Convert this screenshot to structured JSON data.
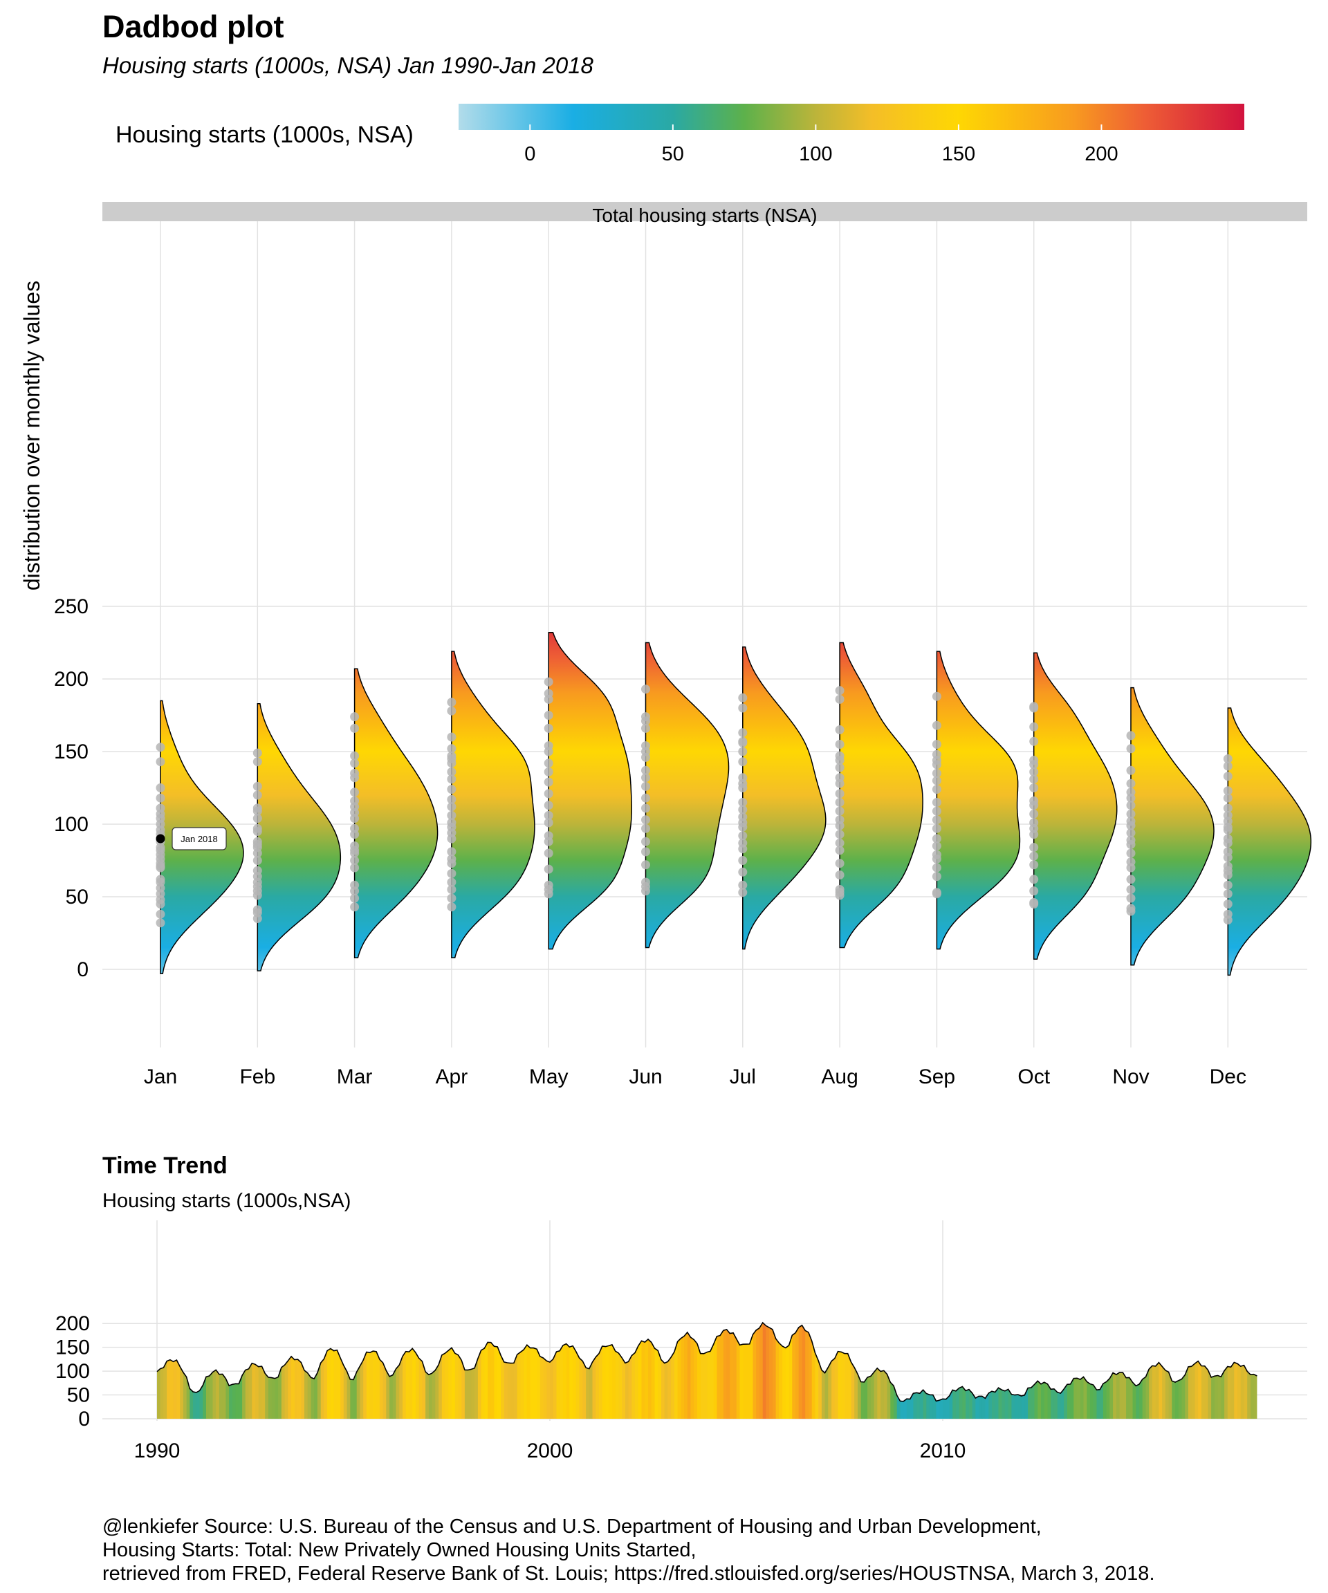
{
  "header": {
    "title": "Dadbod plot",
    "subtitle": "Housing starts (1000s, NSA) Jan 1990-Jan 2018"
  },
  "legend": {
    "title": "Housing starts (1000s, NSA)",
    "ticks": [
      0,
      50,
      100,
      150,
      200
    ],
    "range": [
      -25,
      250
    ],
    "color_stops": [
      {
        "v": -25,
        "c": "#b2dcea"
      },
      {
        "v": 15,
        "c": "#1aaee4"
      },
      {
        "v": 50,
        "c": "#2aa9a4"
      },
      {
        "v": 75,
        "c": "#5db14b"
      },
      {
        "v": 100,
        "c": "#bcb43a"
      },
      {
        "v": 120,
        "c": "#f4be27"
      },
      {
        "v": 150,
        "c": "#fed703"
      },
      {
        "v": 190,
        "c": "#f89b1f"
      },
      {
        "v": 215,
        "c": "#ee5e35"
      },
      {
        "v": 250,
        "c": "#d2133e"
      }
    ]
  },
  "chart_data": [
    {
      "type": "violin",
      "facet_label": "Total housing starts (NSA)",
      "ylabel": "distribution over monthly values",
      "ylim": [
        -30,
        255
      ],
      "yticks": [
        0,
        50,
        100,
        150,
        200,
        250
      ],
      "categories": [
        "Jan",
        "Feb",
        "Mar",
        "Apr",
        "May",
        "Jun",
        "Jul",
        "Aug",
        "Sep",
        "Oct",
        "Nov",
        "Dec"
      ],
      "density_range": [
        [
          -3,
          185
        ],
        [
          -1,
          183
        ],
        [
          8,
          207
        ],
        [
          8,
          219
        ],
        [
          14,
          232
        ],
        [
          15,
          225
        ],
        [
          14,
          222
        ],
        [
          15,
          225
        ],
        [
          14,
          219
        ],
        [
          7,
          218
        ],
        [
          3,
          194
        ],
        [
          -4,
          180
        ]
      ],
      "points": [
        [
          90,
          153,
          143,
          125,
          118,
          111,
          107,
          104,
          100,
          96,
          93,
          88,
          84,
          82,
          79,
          76,
          73,
          71,
          70,
          62,
          60,
          56,
          52,
          48,
          45,
          38,
          32
        ],
        [
          149,
          143,
          126,
          120,
          111,
          109,
          104,
          97,
          95,
          88,
          86,
          84,
          80,
          75,
          68,
          64,
          60,
          57,
          54,
          51,
          41,
          39,
          35
        ],
        [
          174,
          166,
          147,
          142,
          135,
          132,
          122,
          116,
          112,
          108,
          104,
          97,
          93,
          85,
          82,
          80,
          75,
          70,
          58,
          54,
          49,
          43
        ],
        [
          184,
          178,
          160,
          152,
          147,
          145,
          142,
          136,
          131,
          124,
          117,
          112,
          106,
          101,
          98,
          94,
          90,
          81,
          76,
          73,
          66,
          60,
          55,
          49,
          43
        ],
        [
          198,
          190,
          186,
          175,
          166,
          154,
          150,
          142,
          136,
          129,
          121,
          113,
          106,
          101,
          92,
          88,
          80,
          69,
          58,
          55,
          52
        ],
        [
          193,
          174,
          171,
          166,
          154,
          150,
          146,
          137,
          132,
          126,
          118,
          111,
          103,
          97,
          88,
          81,
          72,
          60,
          57,
          54
        ],
        [
          187,
          180,
          163,
          157,
          156,
          150,
          143,
          132,
          128,
          125,
          115,
          110,
          105,
          101,
          98,
          92,
          87,
          83,
          75,
          67,
          58,
          53
        ],
        [
          192,
          186,
          165,
          155,
          147,
          144,
          139,
          132,
          128,
          121,
          115,
          109,
          103,
          99,
          93,
          87,
          82,
          73,
          65,
          55,
          53,
          51
        ],
        [
          188,
          168,
          155,
          148,
          144,
          141,
          135,
          130,
          124,
          115,
          109,
          103,
          97,
          90,
          85,
          79,
          76,
          70,
          64,
          53,
          52
        ],
        [
          181,
          180,
          167,
          157,
          144,
          141,
          136,
          131,
          125,
          116,
          113,
          107,
          101,
          97,
          93,
          84,
          78,
          72,
          62,
          54,
          46,
          45
        ],
        [
          161,
          152,
          137,
          128,
          122,
          118,
          113,
          107,
          102,
          99,
          94,
          89,
          86,
          80,
          74,
          70,
          62,
          55,
          49,
          42,
          40
        ],
        [
          145,
          140,
          133,
          123,
          118,
          111,
          106,
          102,
          98,
          96,
          90,
          87,
          81,
          77,
          71,
          68,
          65,
          58,
          52,
          45,
          38,
          34
        ]
      ],
      "annotation": {
        "label": "Jan 2018",
        "category": "Jan",
        "y": 90
      }
    },
    {
      "type": "area",
      "title": "Time Trend",
      "subtitle": "Housing starts (1000s,NSA)",
      "ylim": [
        0,
        205
      ],
      "yticks": [
        0,
        50,
        100,
        150,
        200
      ],
      "xlim": [
        1988.6,
        2019.3
      ],
      "xticks": [
        1990,
        2000,
        2010
      ],
      "x_start": 1990,
      "annual_series": [
        {
          "year": 1990,
          "jan": 99,
          "peak": 120
        },
        {
          "year": 1991,
          "jan": 52,
          "peak": 100
        },
        {
          "year": 1992,
          "jan": 70,
          "peak": 115
        },
        {
          "year": 1993,
          "jan": 84,
          "peak": 128
        },
        {
          "year": 1994,
          "jan": 87,
          "peak": 147
        },
        {
          "year": 1995,
          "jan": 86,
          "peak": 143
        },
        {
          "year": 1996,
          "jan": 93,
          "peak": 145
        },
        {
          "year": 1997,
          "jan": 93,
          "peak": 146
        },
        {
          "year": 1998,
          "jan": 100,
          "peak": 160
        },
        {
          "year": 1999,
          "jan": 115,
          "peak": 152
        },
        {
          "year": 2000,
          "jan": 121,
          "peak": 155
        },
        {
          "year": 2001,
          "jan": 109,
          "peak": 155
        },
        {
          "year": 2002,
          "jan": 122,
          "peak": 165
        },
        {
          "year": 2003,
          "jan": 118,
          "peak": 178
        },
        {
          "year": 2004,
          "jan": 136,
          "peak": 186
        },
        {
          "year": 2005,
          "jan": 154,
          "peak": 198
        },
        {
          "year": 2006,
          "jan": 150,
          "peak": 190
        },
        {
          "year": 2007,
          "jan": 100,
          "peak": 140
        },
        {
          "year": 2008,
          "jan": 80,
          "peak": 100
        },
        {
          "year": 2009,
          "jan": 36,
          "peak": 57
        },
        {
          "year": 2010,
          "jan": 38,
          "peak": 65
        },
        {
          "year": 2011,
          "jan": 44,
          "peak": 62
        },
        {
          "year": 2012,
          "jan": 48,
          "peak": 77
        },
        {
          "year": 2013,
          "jan": 57,
          "peak": 86
        },
        {
          "year": 2014,
          "jan": 65,
          "peak": 97
        },
        {
          "year": 2015,
          "jan": 73,
          "peak": 115
        },
        {
          "year": 2016,
          "jan": 77,
          "peak": 118
        },
        {
          "year": 2017,
          "jan": 87,
          "peak": 116
        },
        {
          "year": 2018,
          "jan": 90,
          "peak": 90
        }
      ]
    }
  ],
  "caption": [
    "@lenkiefer Source: U.S. Bureau of the Census and U.S. Department of Housing and Urban Development,",
    "Housing Starts: Total: New Privately Owned Housing Units Started,",
    "retrieved from FRED, Federal Reserve Bank of St. Louis; https://fred.stlouisfed.org/series/HOUSTNSA, March 3, 2018."
  ]
}
